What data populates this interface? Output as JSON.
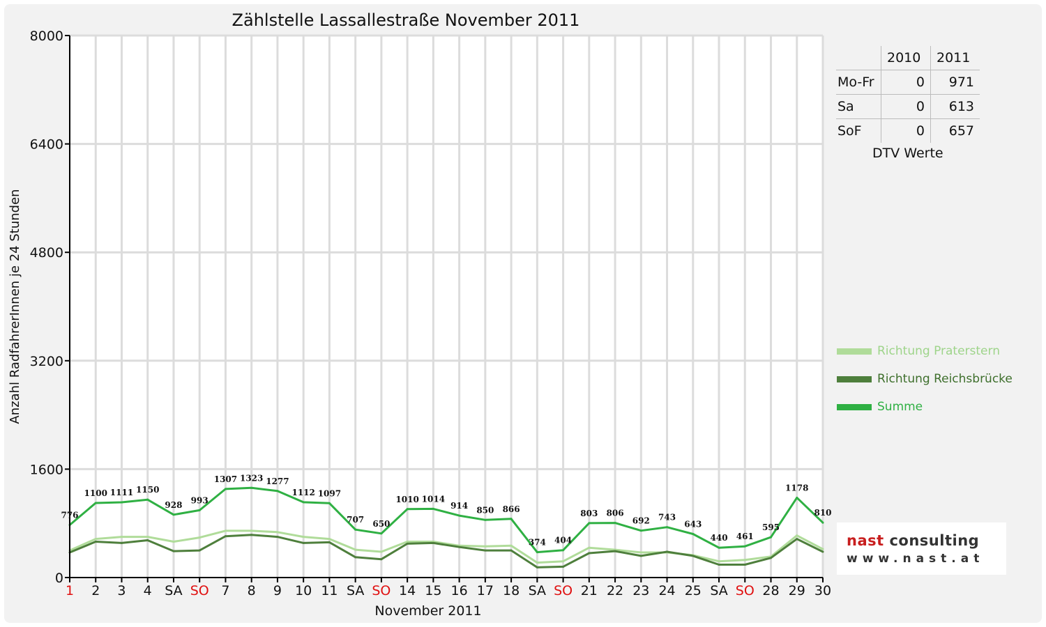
{
  "chart_data": {
    "type": "line",
    "title": "Zählstelle Lassallestraße November 2011",
    "xlabel": "November 2011",
    "ylabel": "Anzahl RadfahrerInnen je 24 Stunden",
    "ylim": [
      0,
      8000
    ],
    "yticks": [
      0,
      1600,
      3200,
      4800,
      6400,
      8000
    ],
    "grid": true,
    "legend_position": "right",
    "categories": [
      "1",
      "2",
      "3",
      "4",
      "SA",
      "SO",
      "7",
      "8",
      "9",
      "10",
      "11",
      "SA",
      "SO",
      "14",
      "15",
      "16",
      "17",
      "18",
      "SA",
      "SO",
      "21",
      "22",
      "23",
      "24",
      "25",
      "SA",
      "SO",
      "28",
      "29",
      "30"
    ],
    "red_categories": [
      0,
      5,
      12,
      19,
      26
    ],
    "series": [
      {
        "name": "Richtung Praterstern",
        "color": "#b0dc9a",
        "values": [
          400,
          570,
          600,
          600,
          530,
          590,
          690,
          690,
          670,
          600,
          570,
          410,
          380,
          530,
          530,
          470,
          460,
          470,
          220,
          240,
          440,
          410,
          370,
          370,
          330,
          240,
          260,
          310,
          620,
          420
        ]
      },
      {
        "name": "Richtung Reichsbrücke",
        "color": "#4e7f3c",
        "values": [
          370,
          530,
          510,
          550,
          390,
          400,
          610,
          630,
          600,
          510,
          520,
          300,
          270,
          500,
          510,
          450,
          400,
          400,
          150,
          160,
          360,
          390,
          320,
          380,
          320,
          190,
          190,
          290,
          570,
          380
        ]
      },
      {
        "name": "Summe",
        "color": "#2fb043",
        "values": [
          776,
          1100,
          1111,
          1150,
          928,
          993,
          1307,
          1323,
          1277,
          1112,
          1097,
          707,
          650,
          1010,
          1014,
          914,
          850,
          866,
          374,
          404,
          803,
          806,
          692,
          743,
          643,
          440,
          461,
          595,
          1178,
          810
        ]
      }
    ]
  },
  "dtv_table": {
    "headers": [
      "2010",
      "2011"
    ],
    "rows": [
      {
        "label": "Mo-Fr",
        "v2010": "0",
        "v2011": "971"
      },
      {
        "label": "Sa",
        "v2010": "0",
        "v2011": "613"
      },
      {
        "label": "SoF",
        "v2010": "0",
        "v2011": "657"
      }
    ],
    "caption": "DTV Werte"
  },
  "logo": {
    "word1": "nast",
    "word2": "consulting",
    "url": "www.nast.at"
  }
}
